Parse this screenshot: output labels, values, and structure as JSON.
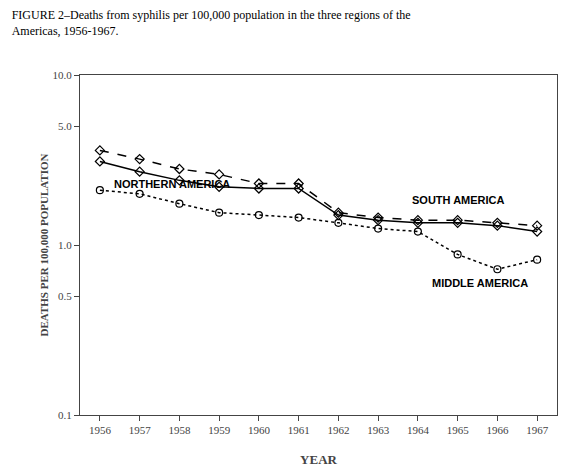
{
  "chart_data": {
    "type": "line",
    "title": "FIGURE 2–Deaths from syphilis per 100,000 population in the three regions of the",
    "subtitle": "Americas, 1956-1967.",
    "x_label": "YEAR",
    "y_label": "DEATHS PER 100,000 POPULATION",
    "x": [
      1956,
      1957,
      1958,
      1959,
      1960,
      1961,
      1962,
      1963,
      1964,
      1965,
      1966,
      1967
    ],
    "series": [
      {
        "color": "#000000",
        "line_style": "dash",
        "marker": "diamond-open",
        "values": [
          3.6,
          3.2,
          2.8,
          2.6,
          2.3,
          2.3,
          1.55,
          1.45,
          1.4,
          1.4,
          1.35,
          1.3
        ]
      },
      {
        "color": "#000000",
        "line_style": "solid",
        "marker": "diamond-open",
        "values": [
          3.1,
          2.7,
          2.4,
          2.2,
          2.15,
          2.15,
          1.5,
          1.4,
          1.35,
          1.35,
          1.3,
          1.2
        ]
      },
      {
        "color": "#000000",
        "line_style": "dot",
        "marker": "circle-open",
        "values": [
          2.1,
          2.0,
          1.75,
          1.55,
          1.5,
          1.45,
          1.35,
          1.25,
          1.2,
          0.88,
          0.72,
          0.82
        ]
      }
    ],
    "annotations": [
      {
        "text": "NORTHERN AMERICA",
        "x": 1956.3,
        "y": 2.3
      },
      {
        "text": "SOUTH AMERICA",
        "x": 1963.8,
        "y": 1.85
      },
      {
        "text": "MIDDLE AMERICA",
        "x": 1964.3,
        "y": 0.6
      }
    ],
    "log": "y",
    "xlim": [
      1955.5,
      1967.5
    ],
    "xticks": [
      1956,
      1957,
      1958,
      1959,
      1960,
      1961,
      1962,
      1963,
      1964,
      1965,
      1966,
      1967
    ],
    "ylim": [
      0.1,
      10.0
    ],
    "yticks": [
      0.1,
      0.5,
      {
        "value": 1,
        "label": "1.0"
      },
      {
        "value": 5,
        "label": "5.0"
      },
      {
        "value": 10,
        "label": "10.0"
      }
    ],
    "grid": false
  }
}
